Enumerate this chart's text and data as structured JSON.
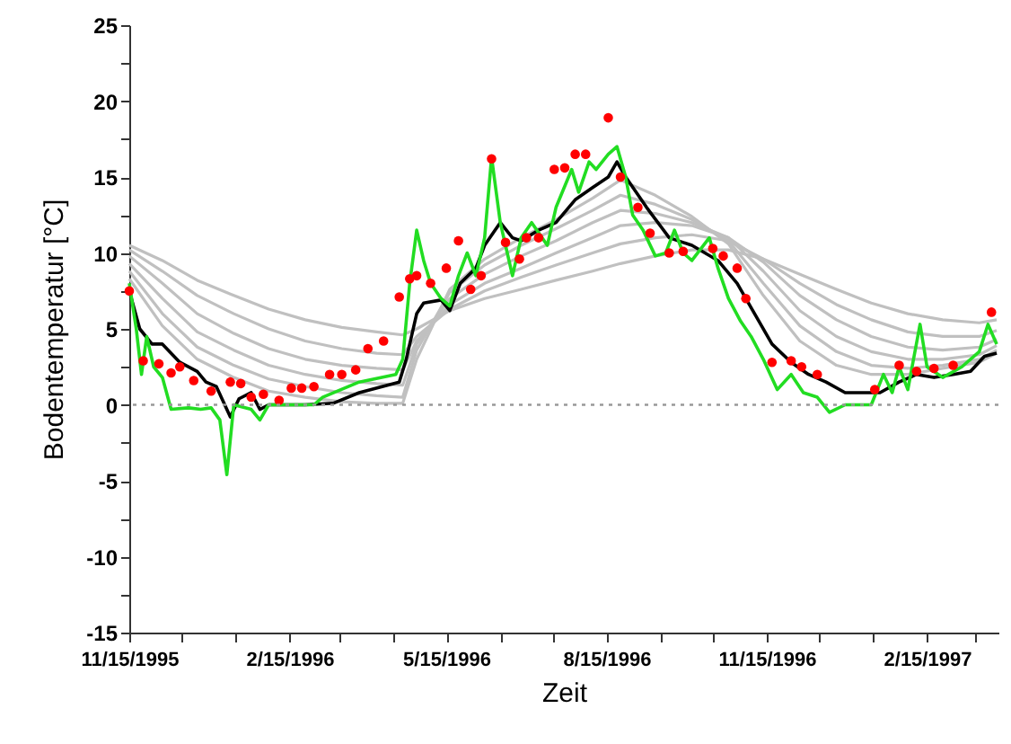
{
  "chart_data": {
    "type": "line",
    "xlabel": "Zeit",
    "ylabel": "Bodentemperatur [°C]",
    "xlim": [
      "1995-11-15",
      "1997-03-28"
    ],
    "xticks": [
      {
        "value": "1995-11-15",
        "label": "11/15/1995"
      },
      {
        "value": "1995-12-15",
        "label": null
      },
      {
        "value": "1996-01-15",
        "label": null
      },
      {
        "value": "1996-02-15",
        "label": "2/15/1996"
      },
      {
        "value": "1996-03-15",
        "label": null
      },
      {
        "value": "1996-04-15",
        "label": null
      },
      {
        "value": "1996-05-15",
        "label": "5/15/1996"
      },
      {
        "value": "1996-06-15",
        "label": null
      },
      {
        "value": "1996-07-15",
        "label": null
      },
      {
        "value": "1996-08-15",
        "label": "8/15/1996"
      },
      {
        "value": "1996-09-15",
        "label": null
      },
      {
        "value": "1996-10-15",
        "label": null
      },
      {
        "value": "1996-11-15",
        "label": "11/15/1996"
      },
      {
        "value": "1996-12-15",
        "label": null
      },
      {
        "value": "1997-01-15",
        "label": null
      },
      {
        "value": "1997-02-15",
        "label": "2/15/1997"
      },
      {
        "value": "1997-03-15",
        "label": null
      }
    ],
    "ylim": [
      -15,
      25
    ],
    "yticks": [
      -15,
      {
        "value": -12.5,
        "label": null
      },
      -10,
      {
        "value": -7.5,
        "label": null
      },
      -5,
      {
        "value": -2.5,
        "label": null
      },
      0,
      {
        "value": 2.5,
        "label": null
      },
      5,
      {
        "value": 7.5,
        "label": null
      },
      10,
      {
        "value": 12.5,
        "label": null
      },
      15,
      {
        "value": 17.5,
        "label": null
      },
      20,
      {
        "value": 22.5,
        "label": null
      },
      25
    ],
    "ref_lines": [
      {
        "axis": "y",
        "value": 0,
        "color": "#999999",
        "line_style": "dotted"
      }
    ],
    "series": [
      {
        "color": "#c0c0c0",
        "x": [
          "1995-11-15",
          "1995-12-04",
          "1995-12-24",
          "1996-01-14",
          "1996-02-03",
          "1996-02-24",
          "1996-03-16",
          "1996-04-05",
          "1996-04-20",
          "1996-04-28",
          "1996-05-17",
          "1996-06-06",
          "1996-06-27",
          "1996-07-17",
          "1996-08-07",
          "1996-08-23",
          "1996-09-12",
          "1996-10-03",
          "1996-10-24",
          "1996-11-13",
          "1996-12-04",
          "1996-12-25",
          "1997-01-14",
          "1997-02-04",
          "1997-02-24",
          "1997-03-17",
          "1997-03-27"
        ],
        "values": [
          10.5,
          9.5,
          8.2,
          7.2,
          6.3,
          5.6,
          5.1,
          4.8,
          4.6,
          5.0,
          6.2,
          7.0,
          7.6,
          8.2,
          8.8,
          9.3,
          9.8,
          10.2,
          10.2,
          9.6,
          8.6,
          7.6,
          6.7,
          6.0,
          5.6,
          5.4,
          5.6
        ]
      },
      {
        "color": "#c0c0c0",
        "x": [
          "1995-11-15",
          "1995-12-04",
          "1995-12-24",
          "1996-01-14",
          "1996-02-03",
          "1996-02-24",
          "1996-03-16",
          "1996-04-05",
          "1996-04-20",
          "1996-04-28",
          "1996-05-17",
          "1996-06-06",
          "1996-06-27",
          "1996-07-17",
          "1996-08-07",
          "1996-08-23",
          "1996-09-12",
          "1996-10-03",
          "1996-10-24",
          "1996-11-13",
          "1996-12-04",
          "1996-12-25",
          "1997-01-14",
          "1997-02-04",
          "1997-02-24",
          "1997-03-17",
          "1997-03-27"
        ],
        "values": [
          10.2,
          8.8,
          7.2,
          6.0,
          5.0,
          4.2,
          3.7,
          3.4,
          3.3,
          4.5,
          6.3,
          7.5,
          8.4,
          9.2,
          10.0,
          10.6,
          11.0,
          11.2,
          10.8,
          9.6,
          8.0,
          6.6,
          5.6,
          4.8,
          4.5,
          4.5,
          4.9
        ]
      },
      {
        "color": "#c0c0c0",
        "x": [
          "1995-11-15",
          "1995-12-04",
          "1995-12-24",
          "1996-01-14",
          "1996-02-03",
          "1996-02-24",
          "1996-03-16",
          "1996-04-05",
          "1996-04-20",
          "1996-04-28",
          "1996-05-17",
          "1996-06-06",
          "1996-06-27",
          "1996-07-17",
          "1996-08-07",
          "1996-08-23",
          "1996-09-12",
          "1996-10-03",
          "1996-10-24",
          "1996-11-13",
          "1996-12-04",
          "1996-12-25",
          "1997-01-14",
          "1997-02-04",
          "1997-02-24",
          "1997-03-17",
          "1997-03-27"
        ],
        "values": [
          9.8,
          8.0,
          6.0,
          4.7,
          3.7,
          3.0,
          2.6,
          2.4,
          2.3,
          4.2,
          6.6,
          8.0,
          9.0,
          10.0,
          11.0,
          11.8,
          12.0,
          11.8,
          11.0,
          9.4,
          7.2,
          5.6,
          4.5,
          3.8,
          3.6,
          3.8,
          4.3
        ]
      },
      {
        "color": "#c0c0c0",
        "x": [
          "1995-11-15",
          "1995-12-04",
          "1995-12-24",
          "1996-01-14",
          "1996-02-03",
          "1996-02-24",
          "1996-03-16",
          "1996-04-05",
          "1996-04-20",
          "1996-04-28",
          "1996-05-17",
          "1996-06-06",
          "1996-06-27",
          "1996-07-17",
          "1996-08-07",
          "1996-08-23",
          "1996-09-12",
          "1996-10-03",
          "1996-10-24",
          "1996-11-13",
          "1996-12-04",
          "1996-12-25",
          "1997-01-14",
          "1997-02-04",
          "1997-02-24",
          "1997-03-17",
          "1997-03-27"
        ],
        "values": [
          9.3,
          7.0,
          4.8,
          3.6,
          2.6,
          2.0,
          1.6,
          1.4,
          1.3,
          4.0,
          7.0,
          8.6,
          9.8,
          10.8,
          12.0,
          12.8,
          12.6,
          12.0,
          11.0,
          8.8,
          6.2,
          4.5,
          3.5,
          3.0,
          3.0,
          3.3,
          3.9
        ]
      },
      {
        "color": "#c0c0c0",
        "x": [
          "1995-11-15",
          "1995-12-04",
          "1995-12-24",
          "1996-01-14",
          "1996-02-03",
          "1996-02-24",
          "1996-03-16",
          "1996-04-05",
          "1996-04-20",
          "1996-04-28",
          "1996-05-17",
          "1996-06-06",
          "1996-06-27",
          "1996-07-17",
          "1996-08-07",
          "1996-08-23",
          "1996-09-12",
          "1996-10-03",
          "1996-10-24",
          "1996-11-13",
          "1996-12-04",
          "1996-12-25",
          "1997-01-14",
          "1997-02-04",
          "1997-02-24",
          "1997-03-17",
          "1997-03-27"
        ],
        "values": [
          8.8,
          6.0,
          3.8,
          2.6,
          1.7,
          1.2,
          0.8,
          0.6,
          0.5,
          3.6,
          7.4,
          9.2,
          10.5,
          11.6,
          12.8,
          13.8,
          13.2,
          12.2,
          10.8,
          8.0,
          5.2,
          3.5,
          2.6,
          2.4,
          2.6,
          3.0,
          3.6
        ]
      },
      {
        "color": "#c0c0c0",
        "x": [
          "1995-11-15",
          "1995-12-04",
          "1995-12-24",
          "1996-01-14",
          "1996-02-03",
          "1996-02-24",
          "1996-03-16",
          "1996-04-05",
          "1996-04-20",
          "1996-04-28",
          "1996-05-17",
          "1996-06-06",
          "1996-06-27",
          "1996-07-17",
          "1996-08-07",
          "1996-08-23",
          "1996-09-12",
          "1996-10-03",
          "1996-10-24",
          "1996-11-13",
          "1996-12-04",
          "1996-12-25",
          "1997-01-14",
          "1997-02-04",
          "1997-02-24",
          "1997-03-17",
          "1997-03-27"
        ],
        "values": [
          8.3,
          5.2,
          3.0,
          1.8,
          0.9,
          0.5,
          0.2,
          0.1,
          0.1,
          3.0,
          7.6,
          9.6,
          11.0,
          12.2,
          13.6,
          14.8,
          13.8,
          12.4,
          10.6,
          7.2,
          4.2,
          2.6,
          2.0,
          2.0,
          2.4,
          2.8,
          3.4
        ]
      },
      {
        "color": "#000000",
        "x": [
          "1995-11-15",
          "1995-11-21",
          "1995-11-28",
          "1995-12-04",
          "1995-12-14",
          "1995-12-24",
          "1995-12-29",
          "1996-01-04",
          "1996-01-12",
          "1996-01-17",
          "1996-01-24",
          "1996-01-29",
          "1996-02-03",
          "1996-02-24",
          "1996-03-11",
          "1996-03-26",
          "1996-04-18",
          "1996-04-22",
          "1996-04-28",
          "1996-05-02",
          "1996-05-12",
          "1996-05-17",
          "1996-05-23",
          "1996-06-01",
          "1996-06-06",
          "1996-06-15",
          "1996-06-22",
          "1996-06-27",
          "1996-07-07",
          "1996-07-17",
          "1996-07-28",
          "1996-08-07",
          "1996-08-16",
          "1996-08-21",
          "1996-08-26",
          "1996-09-07",
          "1996-09-20",
          "1996-10-03",
          "1996-10-18",
          "1996-10-29",
          "1996-11-08",
          "1996-11-18",
          "1996-11-29",
          "1996-12-09",
          "1996-12-19",
          "1996-12-30",
          "1997-01-09",
          "1997-01-19",
          "1997-01-30",
          "1997-02-09",
          "1997-02-19",
          "1997-03-02",
          "1997-03-12",
          "1997-03-20",
          "1997-03-27"
        ],
        "values": [
          7.5,
          5.0,
          4.0,
          4.0,
          2.8,
          2.2,
          1.5,
          1.2,
          -0.8,
          0.4,
          0.8,
          -0.3,
          0,
          0,
          0.1,
          0.8,
          1.5,
          3.0,
          6.0,
          6.7,
          6.9,
          6.2,
          8.0,
          9.0,
          10.5,
          12.0,
          11.0,
          10.8,
          11.5,
          12.0,
          13.5,
          14.3,
          15.0,
          16.0,
          15.0,
          13.0,
          11.0,
          10.5,
          9.5,
          8.0,
          6.0,
          4.0,
          2.8,
          2.0,
          1.5,
          0.8,
          0.8,
          0.8,
          1.5,
          2.0,
          1.8,
          2.0,
          2.2,
          3.2,
          3.4
        ]
      },
      {
        "color": "#22dd22",
        "x": [
          "1995-11-15",
          "1995-11-19",
          "1995-11-22",
          "1995-11-25",
          "1995-11-29",
          "1995-12-04",
          "1995-12-09",
          "1995-12-19",
          "1995-12-26",
          "1996-01-01",
          "1996-01-06",
          "1996-01-10",
          "1996-01-14",
          "1996-01-24",
          "1996-01-29",
          "1996-02-03",
          "1996-02-29",
          "1996-03-05",
          "1996-03-26",
          "1996-04-16",
          "1996-04-20",
          "1996-04-24",
          "1996-04-28",
          "1996-05-02",
          "1996-05-06",
          "1996-05-12",
          "1996-05-17",
          "1996-05-22",
          "1996-05-27",
          "1996-06-01",
          "1996-06-06",
          "1996-06-10",
          "1996-06-15",
          "1996-06-19",
          "1996-06-22",
          "1996-06-27",
          "1996-07-03",
          "1996-07-12",
          "1996-07-17",
          "1996-07-26",
          "1996-07-30",
          "1996-08-05",
          "1996-08-09",
          "1996-08-16",
          "1996-08-21",
          "1996-08-26",
          "1996-08-30",
          "1996-09-05",
          "1996-09-12",
          "1996-09-18",
          "1996-09-23",
          "1996-09-28",
          "1996-10-03",
          "1996-10-13",
          "1996-10-18",
          "1996-10-24",
          "1996-10-31",
          "1996-11-06",
          "1996-11-13",
          "1996-11-21",
          "1996-11-29",
          "1996-12-06",
          "1996-12-14",
          "1996-12-21",
          "1996-12-30",
          "1997-01-14",
          "1997-01-21",
          "1997-01-26",
          "1997-01-30",
          "1997-02-04",
          "1997-02-11",
          "1997-02-15",
          "1997-02-24",
          "1997-03-07",
          "1997-03-17",
          "1997-03-22",
          "1997-03-27"
        ],
        "values": [
          8.0,
          5.0,
          2.0,
          4.5,
          2.5,
          1.8,
          -0.3,
          -0.2,
          -0.3,
          -0.2,
          -1.0,
          -4.6,
          0,
          -0.3,
          -1.0,
          0,
          0,
          0.5,
          1.5,
          2.0,
          3.0,
          8.0,
          11.5,
          9.5,
          8.0,
          7.0,
          6.5,
          8.5,
          10.0,
          8.5,
          11.0,
          16.3,
          12.0,
          10.0,
          8.5,
          11.0,
          12.0,
          10.5,
          13.0,
          15.5,
          14.0,
          16.0,
          15.5,
          16.5,
          17.0,
          15.0,
          12.5,
          11.5,
          9.8,
          10.0,
          11.5,
          10.0,
          9.5,
          11.0,
          9.0,
          7.0,
          5.5,
          4.5,
          3.0,
          1.0,
          2.0,
          0.8,
          0.5,
          -0.5,
          0,
          0,
          2.0,
          0.8,
          2.5,
          1.0,
          5.3,
          2.5,
          1.8,
          2.5,
          3.5,
          5.3,
          4.0
        ]
      },
      {
        "type": "scatter",
        "marker": "circle",
        "color": "#ff0000",
        "x": [
          "1995-11-15",
          "1995-11-23",
          "1995-12-02",
          "1995-12-09",
          "1995-12-14",
          "1995-12-22",
          "1996-01-01",
          "1996-01-12",
          "1996-01-18",
          "1996-01-24",
          "1996-01-31",
          "1996-02-09",
          "1996-02-16",
          "1996-02-22",
          "1996-02-29",
          "1996-03-09",
          "1996-03-16",
          "1996-03-24",
          "1996-03-31",
          "1996-04-09",
          "1996-04-18",
          "1996-04-24",
          "1996-04-28",
          "1996-05-06",
          "1996-05-15",
          "1996-05-22",
          "1996-05-29",
          "1996-06-04",
          "1996-06-10",
          "1996-06-18",
          "1996-06-26",
          "1996-06-30",
          "1996-07-07",
          "1996-07-16",
          "1996-07-22",
          "1996-07-28",
          "1996-08-03",
          "1996-08-16",
          "1996-08-23",
          "1996-09-02",
          "1996-09-09",
          "1996-09-20",
          "1996-09-28",
          "1996-10-15",
          "1996-10-21",
          "1996-10-29",
          "1996-11-03",
          "1996-11-18",
          "1996-11-29",
          "1996-12-05",
          "1996-12-14",
          "1997-01-16",
          "1997-01-30",
          "1997-02-09",
          "1997-02-19",
          "1997-03-02",
          "1997-03-24"
        ],
        "values": [
          7.5,
          2.9,
          2.7,
          2.1,
          2.5,
          1.6,
          0.9,
          1.5,
          1.4,
          0.5,
          0.7,
          0.3,
          1.1,
          1.1,
          1.2,
          2.0,
          2.0,
          2.3,
          3.7,
          4.2,
          7.1,
          8.3,
          8.5,
          8.0,
          9.0,
          10.8,
          7.6,
          8.5,
          16.2,
          10.7,
          9.6,
          11.0,
          11.0,
          15.5,
          15.6,
          16.5,
          16.5,
          18.9,
          15.0,
          13.0,
          11.3,
          10.0,
          10.1,
          10.3,
          9.8,
          9.0,
          7.0,
          2.8,
          2.9,
          2.5,
          2.0,
          1.0,
          2.6,
          2.2,
          2.4,
          2.6,
          6.1
        ]
      }
    ]
  }
}
